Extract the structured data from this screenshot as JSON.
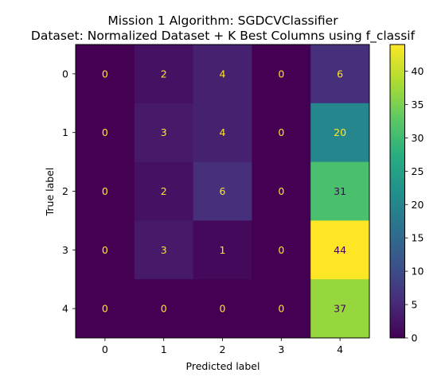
{
  "chart_data": {
    "type": "heatmap",
    "title": "Mission 1 Algorithm: SGDCVClassifier",
    "subtitle": "Dataset: Normalized Dataset + K Best Columns using f_classif",
    "xlabel": "Predicted label",
    "ylabel": "True label",
    "x_categories": [
      "0",
      "1",
      "2",
      "3",
      "4"
    ],
    "y_categories": [
      "0",
      "1",
      "2",
      "3",
      "4"
    ],
    "values": [
      [
        0,
        2,
        4,
        0,
        6
      ],
      [
        0,
        3,
        4,
        0,
        20
      ],
      [
        0,
        2,
        6,
        0,
        31
      ],
      [
        0,
        3,
        1,
        0,
        44
      ],
      [
        0,
        0,
        0,
        0,
        37
      ]
    ],
    "colormap": "viridis",
    "colorbar": {
      "min": 0,
      "max": 44,
      "ticks": [
        0,
        5,
        10,
        15,
        20,
        25,
        30,
        35,
        40
      ],
      "tick_labels": [
        "0",
        "5",
        "10",
        "15",
        "20",
        "25",
        "30",
        "35",
        "40"
      ]
    },
    "text_colors": {
      "dark_cell": "#fde725",
      "light_cell": "#440154"
    }
  }
}
